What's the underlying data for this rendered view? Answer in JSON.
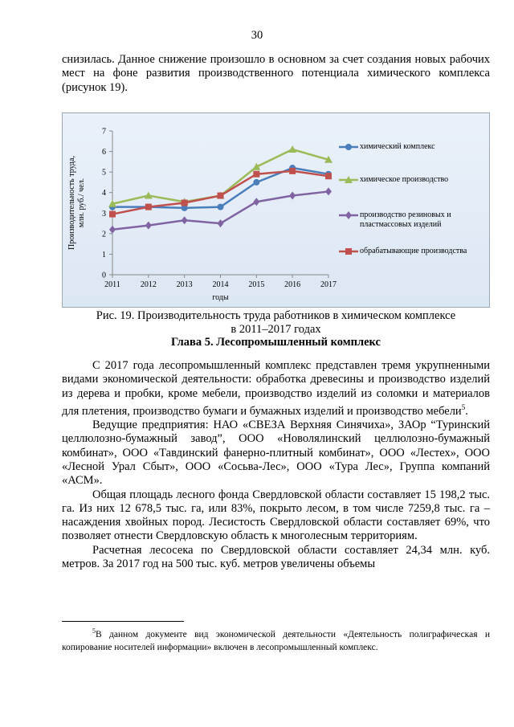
{
  "page_number": "30",
  "intro": "снизилась. Данное снижение произошло в основном за счет создания новых рабочих мест на фоне развития производственного потенциала химического комплекса (рисунок 19).",
  "chart_data": {
    "type": "line",
    "ylabel": [
      "Производительность труда,",
      "млн. руб./ чел."
    ],
    "xlabel": "годы",
    "x": [
      2011,
      2012,
      2013,
      2014,
      2015,
      2016,
      2017
    ],
    "xlim": [
      2011,
      2017
    ],
    "xticks": [
      2011,
      2012,
      2013,
      2014,
      2015,
      2016,
      2017
    ],
    "ylim": [
      0,
      7
    ],
    "yticks": [
      0,
      1,
      2,
      3,
      4,
      5,
      6,
      7
    ],
    "grid": false,
    "legend": "right",
    "series": [
      {
        "name": "химический комплекс",
        "color": "#4a7ebb",
        "marker": "circle",
        "values": [
          3.3,
          3.3,
          3.25,
          3.3,
          4.5,
          5.2,
          4.9
        ]
      },
      {
        "name": "химическое производство",
        "color": "#9bbb59",
        "marker": "triangle",
        "values": [
          3.45,
          3.85,
          3.55,
          3.85,
          5.25,
          6.1,
          5.6
        ]
      },
      {
        "name": "производство резиновых и пластмассовых изделий",
        "color": "#8064a2",
        "marker": "diamond",
        "values": [
          2.2,
          2.4,
          2.65,
          2.5,
          3.55,
          3.85,
          4.05
        ]
      },
      {
        "name": "обрабатывающие производства",
        "color": "#c0504d",
        "marker": "square",
        "values": [
          2.95,
          3.3,
          3.5,
          3.85,
          4.9,
          5.05,
          4.8
        ]
      }
    ]
  },
  "caption": [
    "Рис. 19. Производительность труда работников в химическом комплексе",
    "в 2011–2017 годах"
  ],
  "heading": "Глава 5. Лесопромышленный комплекс",
  "paragraphs": [
    {
      "text": "С 2017 года лесопромышленный комплекс представлен тремя укрупненными видами экономической деятельности: обработка древесины и производство изделий из дерева и пробки, кроме мебели, производство изделий из соломки и материалов для плетения, производство бумаги и бумажных изделий и производство мебели",
      "note": "5",
      "end": "."
    },
    {
      "text": "Ведущие предприятия: НАО «СВЕЗА Верхняя Синячиха», ЗАОр “Туринский целлюлозно-бумажный завод”, ООО «Новолялинский целлюлозно-бумажный комбинат», ООО «Тавдинский фанерно-плитный комбинат», ООО «Лестех», ООО «Лесной Урал Сбыт», ООО «Сосьва-Лес», ООО «Тура Лес», Группа компаний «АСМ»."
    },
    {
      "text": "Общая площадь лесного фонда Свердловской области составляет 15 198,2 тыс. га. Из них 12 678,5 тыс. га, или 83%, покрыто лесом, в том числе 7259,8 тыс. га – насаждения хвойных пород. Лесистость Свердловской области составляет 69%, что позволяет отнести Свердловскую область к многолесным территориям."
    },
    {
      "text": "Расчетная лесосека по Свердловской области составляет 24,34 млн. куб. метров. За 2017 год на 500 тыс. куб. метров увеличены объемы"
    }
  ],
  "footnote": {
    "mark": "5",
    "text": "В данном документе вид экономической деятельности «Деятельность полиграфическая и копирование носителей информации» включен в лесопромышленный комплекс."
  }
}
